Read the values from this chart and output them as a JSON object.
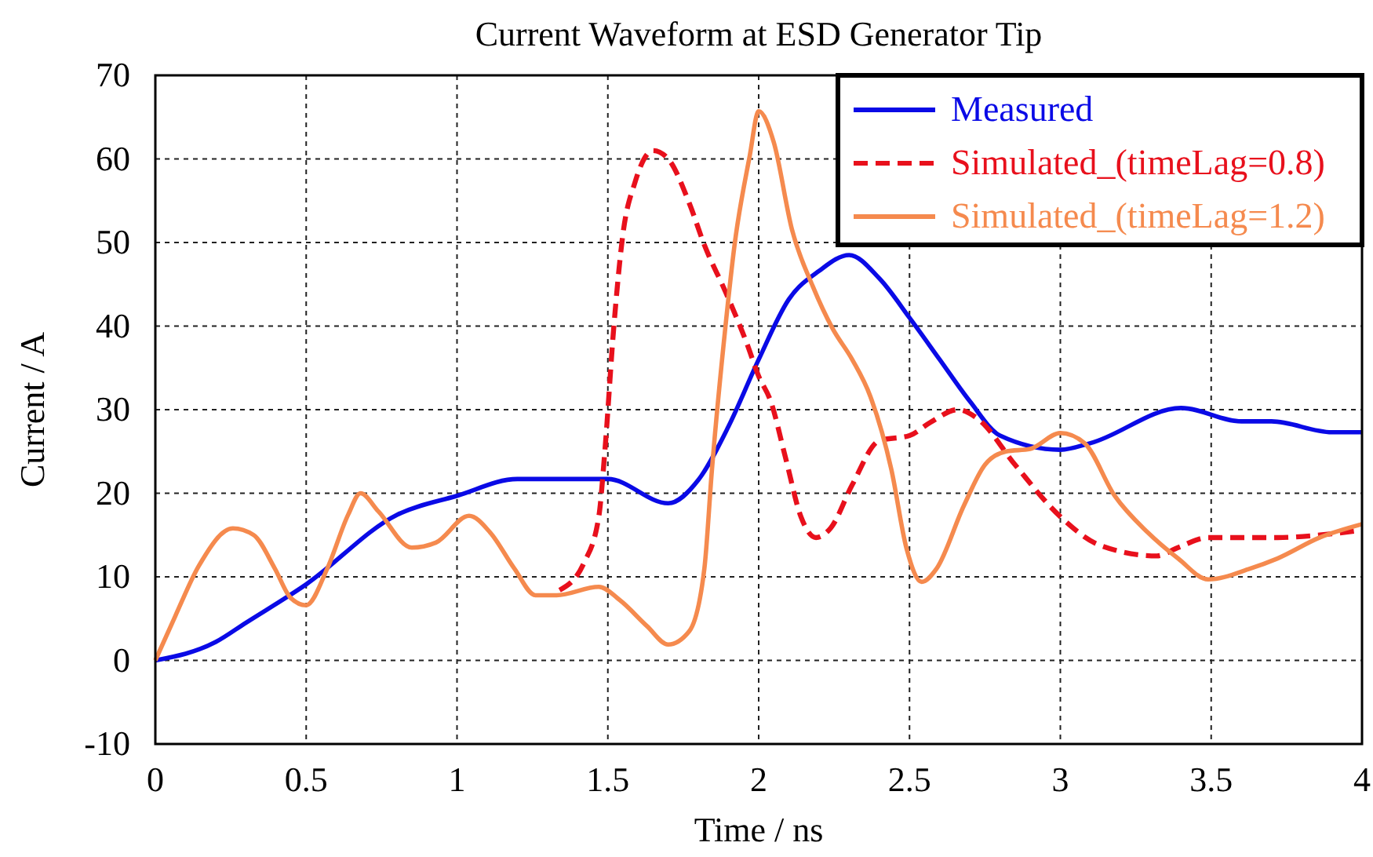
{
  "chart_data": {
    "type": "line",
    "title": "Current Waveform at ESD Generator Tip",
    "xlabel": "Time / ns",
    "ylabel": "Current / A",
    "xlim": [
      0,
      4
    ],
    "xticks": [
      0,
      0.5,
      1,
      1.5,
      2,
      2.5,
      3,
      3.5,
      4
    ],
    "ylim": [
      -10,
      70
    ],
    "yticks": [
      -10,
      0,
      10,
      20,
      30,
      40,
      50,
      60,
      70
    ],
    "grid": true,
    "legend": "top right",
    "series": [
      {
        "name": "Measured",
        "color": "#0a0ae6",
        "line_style": "solid",
        "x": [
          0,
          0.2,
          0.3,
          0.5,
          0.8,
          1.0,
          1.2,
          1.5,
          1.7,
          1.8,
          1.9,
          2.0,
          2.1,
          2.2,
          2.3,
          2.4,
          2.5,
          2.6,
          2.7,
          2.8,
          3.0,
          3.1,
          3.4,
          3.6,
          3.7,
          3.9,
          4.0
        ],
        "values": [
          0,
          2.2,
          4.5,
          9.1,
          17.4,
          19.7,
          21.7,
          21.7,
          18.8,
          21.6,
          28,
          36,
          43.2,
          46.6,
          48.5,
          45.7,
          41,
          36,
          31,
          26.9,
          25.2,
          26,
          30.2,
          28.6,
          28.6,
          27.3,
          27.3
        ]
      },
      {
        "name": "Simulated_(timeLag=0.8)",
        "color": "#e8101c",
        "line_style": "dashed",
        "x": [
          1.34,
          1.42,
          1.47,
          1.49,
          1.52,
          1.55,
          1.59,
          1.65,
          1.7,
          1.77,
          1.82,
          1.89,
          1.96,
          2.0,
          2.04,
          2.09,
          2.14,
          2.19,
          2.24,
          2.31,
          2.4,
          2.5,
          2.57,
          2.66,
          2.73,
          2.85,
          3.0,
          3.13,
          3.32,
          3.39,
          3.49,
          3.72,
          3.86,
          4.0
        ],
        "values": [
          8.4,
          11.6,
          17.2,
          25,
          40,
          51,
          57.2,
          61,
          60,
          54.7,
          49.7,
          44.1,
          38,
          34,
          31,
          24.1,
          17.2,
          14.7,
          15.9,
          21,
          26.3,
          26.9,
          28.5,
          30,
          28.8,
          23.4,
          17.2,
          13.8,
          12.5,
          13.5,
          14.7,
          14.7,
          15,
          15.6
        ]
      },
      {
        "name": "Simulated_(timeLag=1.2)",
        "color": "#f58a4e",
        "line_style": "solid",
        "x": [
          0,
          0.066,
          0.144,
          0.257,
          0.326,
          0.396,
          0.448,
          0.5,
          0.57,
          0.64,
          0.68,
          0.74,
          0.85,
          0.93,
          1.04,
          1.11,
          1.19,
          1.26,
          1.33,
          1.47,
          1.54,
          1.63,
          1.7,
          1.77,
          1.82,
          1.845,
          1.89,
          1.92,
          1.97,
          2.0,
          2.05,
          2.11,
          2.18,
          2.245,
          2.31,
          2.37,
          2.44,
          2.49,
          2.54,
          2.59,
          2.68,
          2.75,
          2.82,
          2.9,
          3.0,
          3.08,
          3.18,
          3.29,
          3.39,
          3.49,
          3.63,
          3.72,
          3.86,
          4.0
        ],
        "values": [
          0,
          5.3,
          11.3,
          15.8,
          15,
          11,
          7.5,
          6.6,
          11,
          17.5,
          20,
          17.8,
          13.5,
          14.1,
          17.3,
          15.3,
          11,
          7.8,
          7.8,
          8.8,
          7.2,
          4.1,
          1.9,
          3.5,
          11,
          22.8,
          40,
          49.7,
          60.3,
          65.7,
          62,
          51.6,
          44.7,
          39.7,
          36,
          31.6,
          22.8,
          13.4,
          9.4,
          11,
          18.5,
          23.4,
          25,
          25.3,
          27.2,
          26,
          19.7,
          15.3,
          12.2,
          9.7,
          11,
          12.2,
          14.7,
          16.3
        ]
      }
    ]
  }
}
